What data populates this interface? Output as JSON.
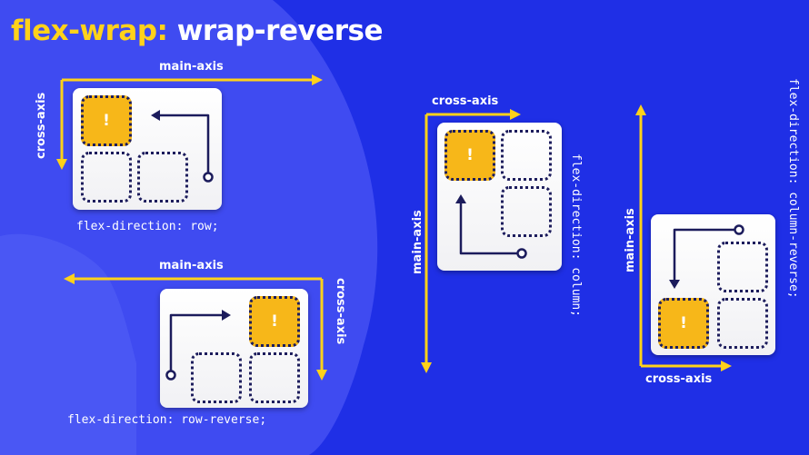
{
  "title": {
    "keyword": "flex-wrap",
    "separator": ":",
    "value": "wrap-reverse"
  },
  "axes": {
    "main": "main-axis",
    "cross": "cross-axis"
  },
  "highlight_glyph": "!",
  "panels": [
    {
      "code": "flex-direction: row;"
    },
    {
      "code": "flex-direction: row-reverse;"
    },
    {
      "code": "flex-direction: column;"
    },
    {
      "code": "flex-direction: column-reverse;"
    }
  ],
  "colors": {
    "background": "#1f2fe6",
    "background_shape": "#3f4bf1",
    "axis_arrow": "#ffd21a",
    "highlight": "#f7b719",
    "flow_arrow": "#1c1c5c",
    "card": "#ffffff"
  }
}
